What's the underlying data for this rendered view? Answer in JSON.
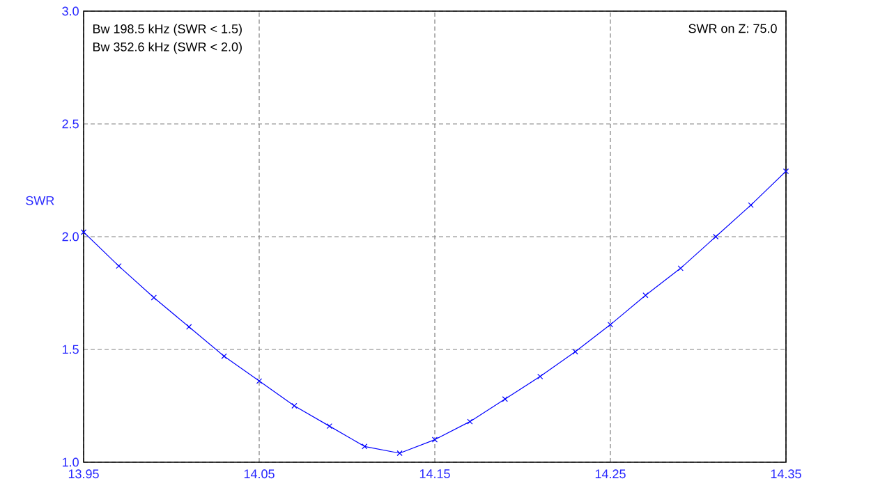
{
  "chart_data": {
    "type": "line",
    "ylabel": "SWR",
    "annotations": [
      "Bw 198.5 kHz (SWR < 1.5)",
      "Bw 352.6 kHz (SWR < 2.0)",
      "SWR on Z: 75.0"
    ],
    "x": [
      13.95,
      13.97,
      13.99,
      14.01,
      14.03,
      14.05,
      14.07,
      14.09,
      14.11,
      14.13,
      14.15,
      14.17,
      14.19,
      14.21,
      14.23,
      14.25,
      14.27,
      14.29,
      14.31,
      14.33,
      14.35
    ],
    "series": [
      {
        "color": "#0000ff",
        "values": [
          2.02,
          1.87,
          1.73,
          1.6,
          1.47,
          1.36,
          1.25,
          1.16,
          1.07,
          1.04,
          1.1,
          1.18,
          1.28,
          1.38,
          1.49,
          1.61,
          1.74,
          1.86,
          2.0,
          2.14,
          2.29
        ]
      }
    ],
    "xlim": [
      13.95,
      14.35
    ],
    "xticks": [
      13.95,
      14.05,
      14.15,
      14.25,
      14.35
    ],
    "ylim": [
      1.0,
      3.0
    ],
    "yticks": [
      {
        "value": 1.0,
        "label": "1.0"
      },
      {
        "value": 1.5,
        "label": "1.5"
      },
      {
        "value": 2.0,
        "label": "2.0"
      },
      {
        "value": 2.5,
        "label": "2.5"
      },
      {
        "value": 3.0,
        "label": "3.0"
      }
    ],
    "grid": true,
    "marker": "cross",
    "line_style": "solid"
  }
}
